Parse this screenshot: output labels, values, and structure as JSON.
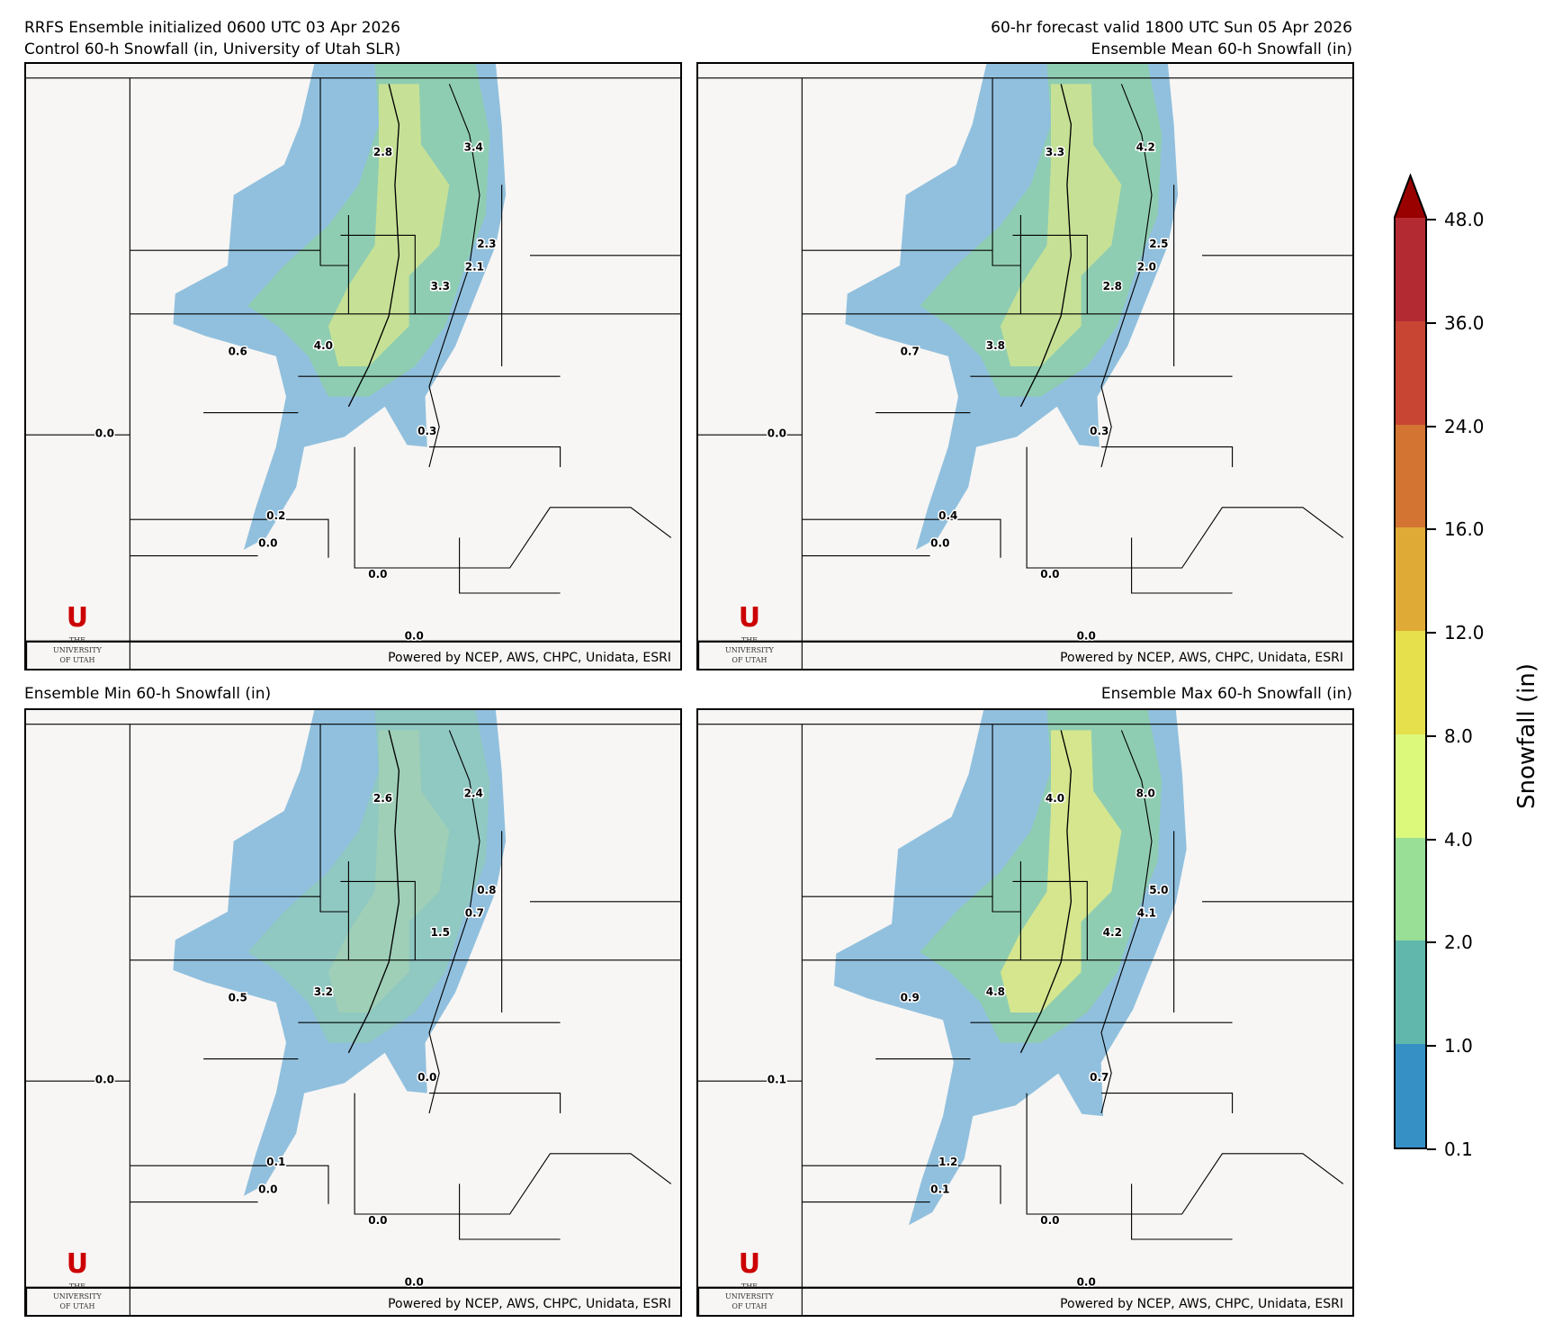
{
  "header": {
    "left_line1": "RRFS Ensemble initialized 0600 UTC 03 Apr 2026",
    "right_line1": "60-hr forecast valid 1800 UTC Sun 05 Apr 2026"
  },
  "panels": [
    {
      "title": "Control 60-h Snowfall (in, University of Utah SLR)",
      "labels": [
        "2.8",
        "3.4",
        "2.3",
        "2.1",
        "3.3",
        "4.0",
        "0.6",
        "0.0",
        "0.3",
        "0.2",
        "0.0",
        "0.0",
        "0.0"
      ],
      "intensity": 1
    },
    {
      "title": "Ensemble Mean 60-h Snowfall (in)",
      "labels": [
        "3.3",
        "4.2",
        "2.5",
        "2.0",
        "2.8",
        "3.8",
        "0.7",
        "0.0",
        "0.3",
        "0.4",
        "0.0",
        "0.0",
        "0.0"
      ],
      "intensity": 1
    },
    {
      "title": "Ensemble Min 60-h Snowfall (in)",
      "labels": [
        "2.6",
        "2.4",
        "0.8",
        "0.7",
        "1.5",
        "3.2",
        "0.5",
        "0.0",
        "0.0",
        "0.1",
        "0.0",
        "0.0",
        "0.0"
      ],
      "intensity": 0
    },
    {
      "title": "Ensemble Max 60-h Snowfall (in)",
      "labels": [
        "4.0",
        "8.0",
        "5.0",
        "4.1",
        "4.2",
        "4.8",
        "0.9",
        "0.1",
        "0.7",
        "1.2",
        "0.1",
        "0.0",
        "0.0"
      ],
      "intensity": 2
    }
  ],
  "footer": "Powered by NCEP, AWS, CHPC, Unidata, ESRI",
  "logo": {
    "line1": "THE",
    "line2": "UNIVERSITY",
    "line3": "OF UTAH",
    "letter": "U"
  },
  "colorbar": {
    "label": "Snowfall (in)",
    "ticks": [
      "0.1",
      "1.0",
      "2.0",
      "4.0",
      "8.0",
      "12.0",
      "16.0",
      "24.0",
      "36.0",
      "48.0"
    ],
    "colors": [
      "#3790c5",
      "#62b7ac",
      "#99df95",
      "#dcf97c",
      "#e5e04c",
      "#dfaa35",
      "#d37433",
      "#c84533",
      "#b42a33"
    ],
    "extend_color": "#990000"
  }
}
